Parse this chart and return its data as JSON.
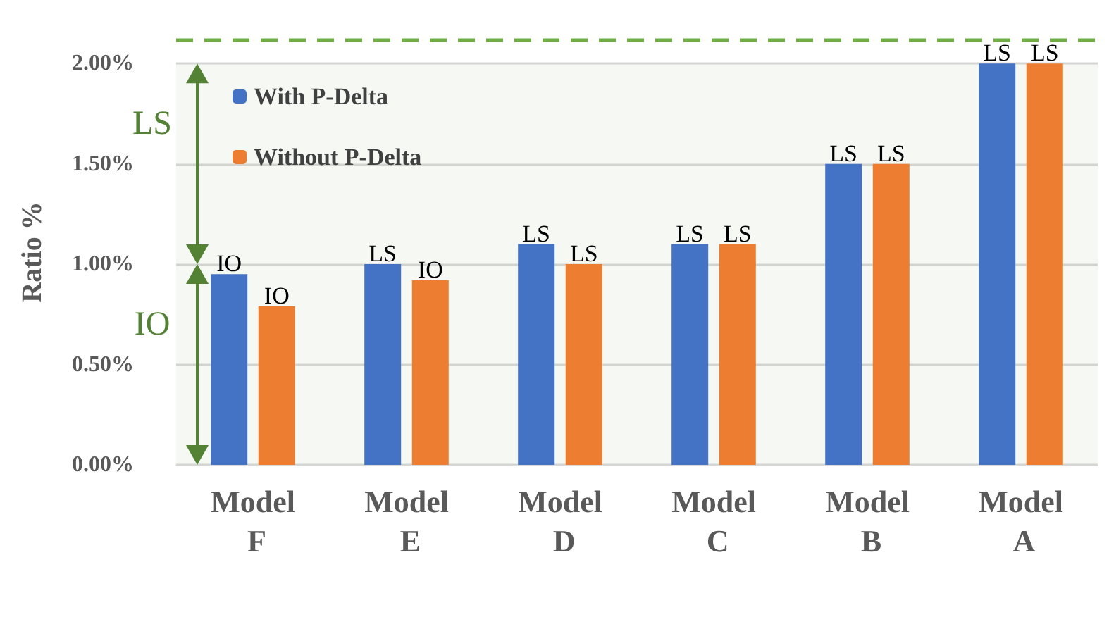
{
  "chart_data": {
    "type": "bar",
    "ylabel": "Ratio %",
    "categories": [
      "Model F",
      "Model E",
      "Model D",
      "Model C",
      "Model B",
      "Model A"
    ],
    "series": [
      {
        "name": "With P-Delta",
        "color": "#4472c4",
        "values": [
          0.95,
          1.0,
          1.1,
          1.1,
          1.5,
          2.0
        ],
        "value_labels": [
          "IO",
          "LS",
          "LS",
          "LS",
          "LS",
          "LS"
        ]
      },
      {
        "name": "Without P-Delta",
        "color": "#ed7d31",
        "values": [
          0.79,
          0.92,
          1.0,
          1.1,
          1.5,
          2.0
        ],
        "value_labels": [
          "IO",
          "IO",
          "LS",
          "LS",
          "LS",
          "LS"
        ]
      }
    ],
    "ylim": [
      0,
      2.12
    ],
    "yticks": [
      {
        "value": 0,
        "label": "0.00%"
      },
      {
        "value": 0.5,
        "label": "0.50%"
      },
      {
        "value": 1,
        "label": "1.00%"
      },
      {
        "value": 1.5,
        "label": "1.50%"
      },
      {
        "value": 2,
        "label": "2.00%"
      }
    ],
    "ref_lines": [
      {
        "axis": "y",
        "value": 2.12,
        "color": "#70ad47",
        "line_style": "dashed"
      }
    ],
    "bands": [
      {
        "axis": "y",
        "from": 0,
        "to": 1,
        "label": "IO",
        "color": "#548235"
      },
      {
        "axis": "y",
        "from": 1,
        "to": 2,
        "label": "LS",
        "color": "#548235"
      }
    ],
    "grid": "y",
    "legend": "top left"
  }
}
